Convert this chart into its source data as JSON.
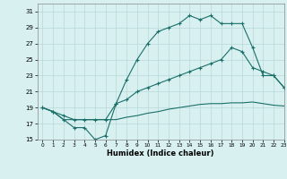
{
  "line1_x": [
    0,
    1,
    2,
    3,
    4,
    5,
    6,
    7,
    8,
    9,
    10,
    11,
    12,
    13,
    14,
    15,
    16,
    17,
    18,
    19,
    20,
    21,
    22,
    23
  ],
  "line1_y": [
    19.0,
    18.5,
    17.5,
    16.5,
    16.5,
    15.0,
    15.5,
    19.5,
    22.5,
    25.0,
    27.0,
    28.5,
    29.0,
    29.5,
    30.5,
    30.0,
    30.5,
    29.5,
    29.5,
    29.5,
    26.5,
    23.0,
    23.0,
    21.5
  ],
  "line2_x": [
    0,
    1,
    2,
    3,
    4,
    5,
    6,
    7,
    8,
    9,
    10,
    11,
    12,
    13,
    14,
    15,
    16,
    17,
    18,
    19,
    20,
    21,
    22,
    23
  ],
  "line2_y": [
    19.0,
    18.5,
    18.0,
    17.5,
    17.5,
    17.5,
    17.5,
    19.5,
    20.0,
    21.0,
    21.5,
    22.0,
    22.5,
    23.0,
    23.5,
    24.0,
    24.5,
    25.0,
    26.5,
    26.0,
    24.0,
    23.5,
    23.0,
    21.5
  ],
  "line3_x": [
    0,
    1,
    2,
    3,
    4,
    5,
    6,
    7,
    8,
    9,
    10,
    11,
    12,
    13,
    14,
    15,
    16,
    17,
    18,
    19,
    20,
    21,
    22,
    23
  ],
  "line3_y": [
    19.0,
    18.5,
    17.5,
    17.5,
    17.5,
    17.5,
    17.5,
    17.5,
    17.8,
    18.0,
    18.3,
    18.5,
    18.8,
    19.0,
    19.2,
    19.4,
    19.5,
    19.5,
    19.6,
    19.6,
    19.7,
    19.5,
    19.3,
    19.2
  ],
  "color": "#1a7068",
  "bg_color": "#d8f0f0",
  "grid_color": "#b8d8d8",
  "xlabel": "Humidex (Indice chaleur)",
  "ylim": [
    15,
    32
  ],
  "xlim": [
    -0.5,
    23
  ],
  "yticks": [
    15,
    17,
    19,
    21,
    23,
    25,
    27,
    29,
    31
  ],
  "xticks": [
    0,
    1,
    2,
    3,
    4,
    5,
    6,
    7,
    8,
    9,
    10,
    11,
    12,
    13,
    14,
    15,
    16,
    17,
    18,
    19,
    20,
    21,
    22,
    23
  ]
}
